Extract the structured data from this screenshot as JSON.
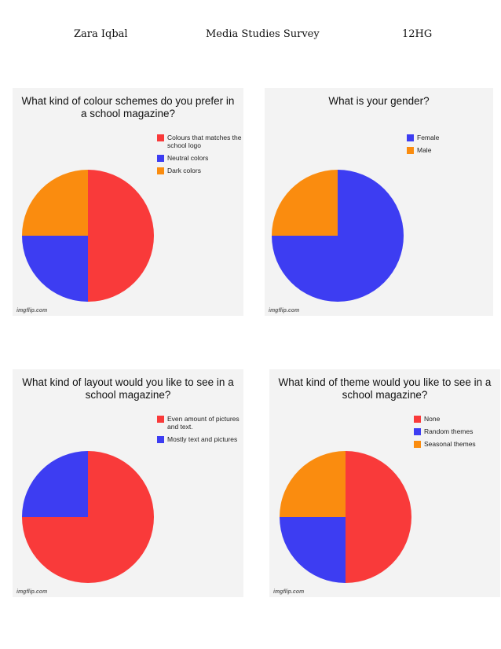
{
  "header": {
    "name": "Zara Iqbal",
    "title": "Media Studies Survey",
    "class_code": "12HG"
  },
  "colors": {
    "red": "#f93a3a",
    "blue": "#3d3df2",
    "orange": "#fa8c0f"
  },
  "chart_data": [
    {
      "type": "pie",
      "title_lines": [
        "What kind of colour schemes do you prefer in",
        "a school magazine?"
      ],
      "legend_position": "right",
      "watermark": "imgflip.com",
      "slices": [
        {
          "label_lines": [
            "Colours that matches the",
            "school logo"
          ],
          "value": 50,
          "color": "#f93a3a"
        },
        {
          "label_lines": [
            "Neutral colors"
          ],
          "value": 25,
          "color": "#3d3df2"
        },
        {
          "label_lines": [
            "Dark colors"
          ],
          "value": 25,
          "color": "#fa8c0f"
        }
      ]
    },
    {
      "type": "pie",
      "title_lines": [
        "What is your gender?"
      ],
      "legend_position": "right",
      "watermark": "imgflip.com",
      "slices": [
        {
          "label_lines": [
            "Female"
          ],
          "value": 75,
          "color": "#3d3df2"
        },
        {
          "label_lines": [
            "Male"
          ],
          "value": 25,
          "color": "#fa8c0f"
        }
      ]
    },
    {
      "type": "pie",
      "title_lines": [
        "What kind of layout would you like to see in a",
        "school magazine?"
      ],
      "legend_position": "right",
      "watermark": "imgflip.com",
      "slices": [
        {
          "label_lines": [
            "Even amount of pictures",
            "and text."
          ],
          "value": 75,
          "color": "#f93a3a"
        },
        {
          "label_lines": [
            "Mostly text and pictures"
          ],
          "value": 25,
          "color": "#3d3df2"
        }
      ]
    },
    {
      "type": "pie",
      "title_lines": [
        "What kind of theme would you like to see in a",
        "school magazine?"
      ],
      "legend_position": "right",
      "watermark": "imgflip.com",
      "slices": [
        {
          "label_lines": [
            "None"
          ],
          "value": 50,
          "color": "#f93a3a"
        },
        {
          "label_lines": [
            "Random themes"
          ],
          "value": 25,
          "color": "#3d3df2"
        },
        {
          "label_lines": [
            "Seasonal themes"
          ],
          "value": 25,
          "color": "#fa8c0f"
        }
      ]
    }
  ]
}
